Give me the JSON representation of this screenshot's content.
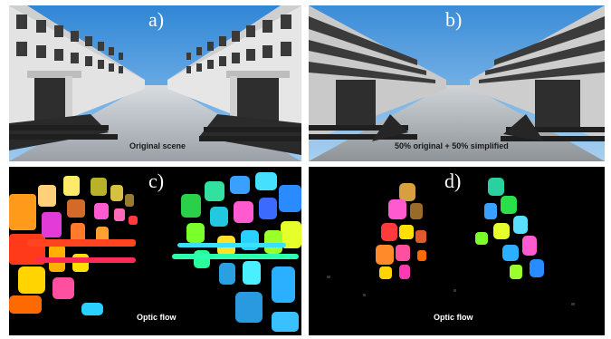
{
  "panels": [
    {
      "letter": "a)",
      "caption": "Original scene"
    },
    {
      "letter": "b)",
      "caption": "50% original + 50% simplified"
    },
    {
      "letter": "c)",
      "caption": "Optic flow"
    },
    {
      "letter": "d)",
      "caption": "Optic flow"
    }
  ],
  "colors": {
    "sky": "#4a9ee0",
    "facade": "#d9d9d9",
    "window": "#3a3a3a",
    "flow_background": "#000000"
  }
}
